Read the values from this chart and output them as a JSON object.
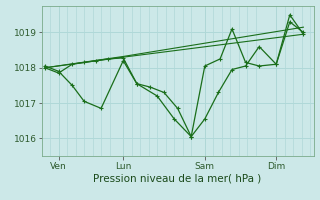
{
  "xlabel": "Pression niveau de la mer( hPa )",
  "background_color": "#cce8e8",
  "grid_color": "#b0d8d8",
  "line_color": "#1a6e1a",
  "ylim": [
    1015.5,
    1019.75
  ],
  "yticks": [
    1016,
    1017,
    1018,
    1019
  ],
  "xlim": [
    0,
    16
  ],
  "day_labels": [
    "Ven",
    "Lun",
    "Sam",
    "Dim"
  ],
  "day_positions": [
    1.0,
    4.8,
    9.6,
    13.8
  ],
  "minor_grid_x": [
    0.5,
    1.5,
    2.0,
    2.5,
    3.0,
    3.5,
    4.0,
    5.3,
    5.8,
    6.3,
    6.8,
    7.3,
    7.8,
    8.3,
    8.8,
    10.1,
    10.6,
    11.1,
    11.6,
    12.1,
    12.6,
    14.3,
    14.8,
    15.3,
    15.8
  ],
  "series1_x": [
    0.2,
    1.0,
    1.8,
    2.5,
    3.2,
    3.9,
    4.8,
    5.6,
    6.4,
    7.2,
    8.0,
    8.8,
    9.6,
    10.4,
    11.2,
    12.0,
    12.8,
    13.8,
    14.6,
    15.4
  ],
  "series1_y": [
    1018.0,
    1017.85,
    1018.1,
    1018.15,
    1018.2,
    1018.25,
    1018.28,
    1017.55,
    1017.45,
    1017.3,
    1016.85,
    1016.05,
    1016.55,
    1017.3,
    1017.95,
    1018.05,
    1018.6,
    1018.1,
    1019.3,
    1019.0
  ],
  "series2_x": [
    0.2,
    1.0,
    1.8,
    2.5,
    3.5,
    4.8,
    5.6,
    6.8,
    7.8,
    8.8,
    9.6,
    10.5,
    11.2,
    12.0,
    12.8,
    13.8,
    14.6,
    15.4
  ],
  "series2_y": [
    1018.05,
    1017.9,
    1017.5,
    1017.05,
    1016.85,
    1018.2,
    1017.55,
    1017.2,
    1016.55,
    1016.05,
    1018.05,
    1018.25,
    1019.1,
    1018.15,
    1018.05,
    1018.1,
    1019.5,
    1018.95
  ],
  "trend1_x": [
    0.2,
    4.8,
    15.4
  ],
  "trend1_y": [
    1018.0,
    1018.3,
    1018.95
  ],
  "trend2_x": [
    0.2,
    4.8,
    15.4
  ],
  "trend2_y": [
    1018.0,
    1018.32,
    1019.15
  ]
}
